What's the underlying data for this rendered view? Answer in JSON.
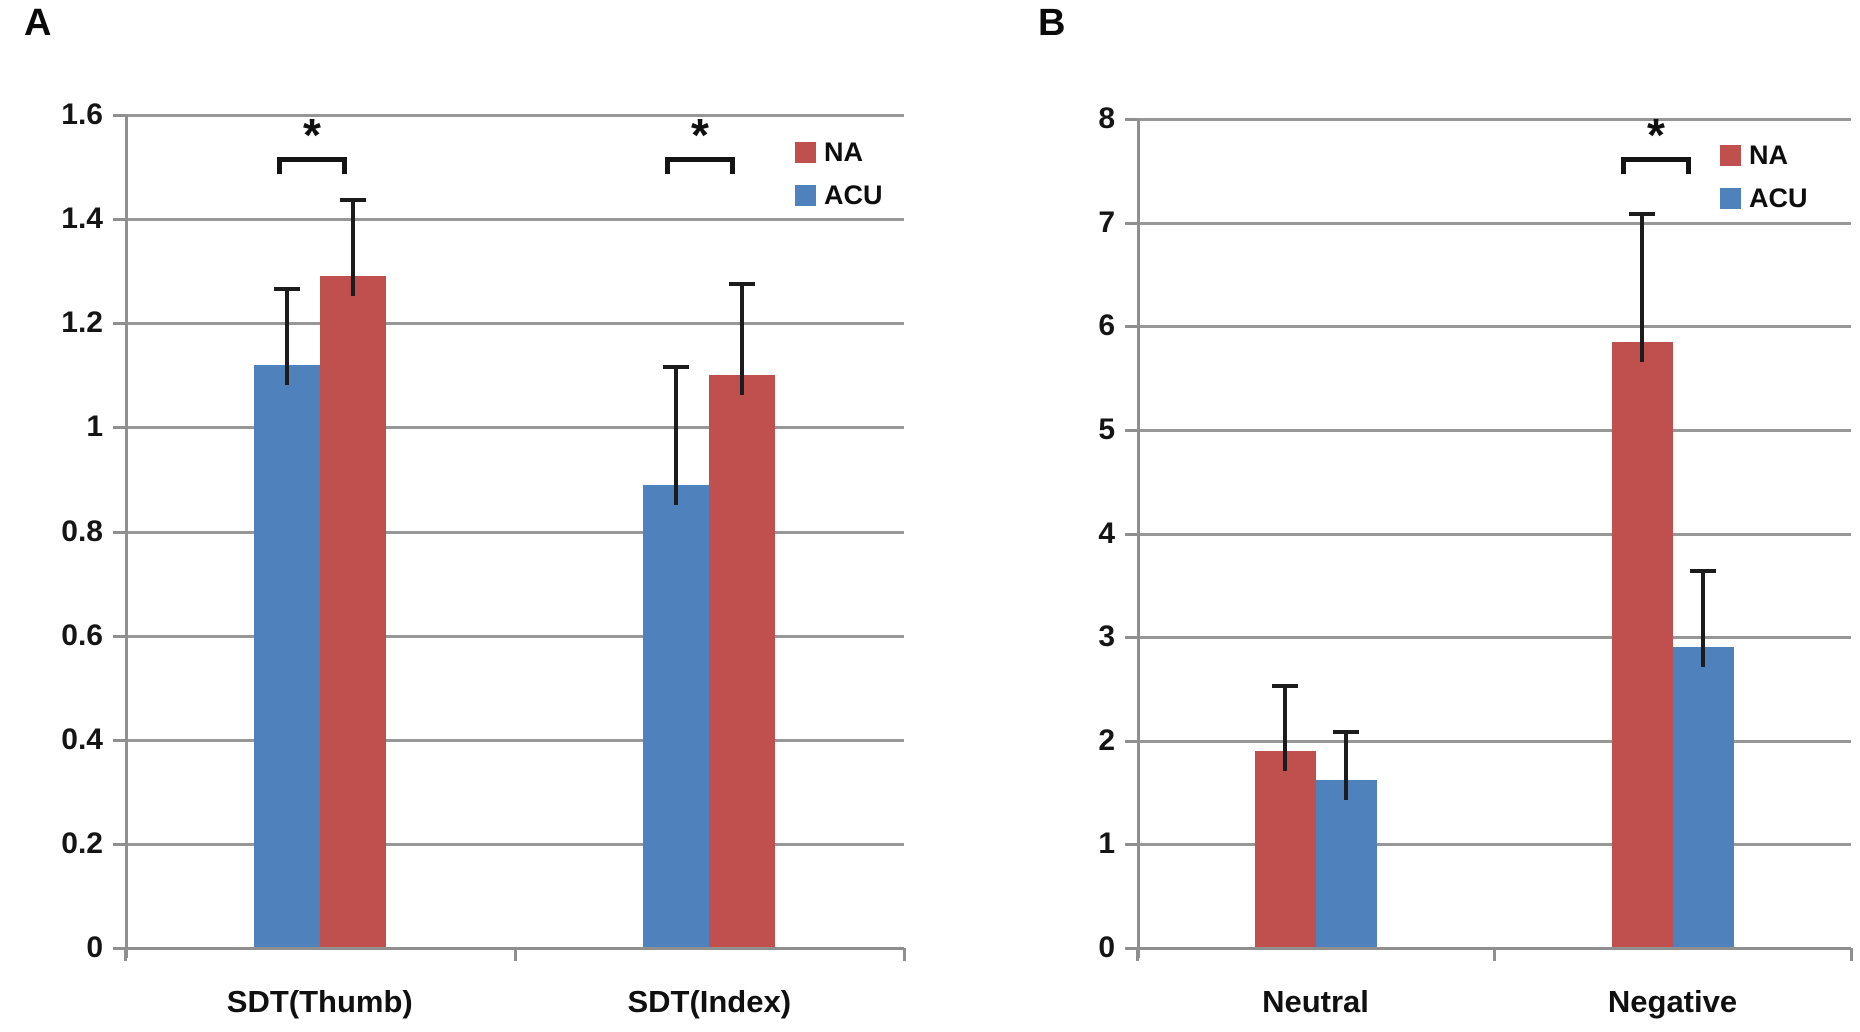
{
  "figure_title": "",
  "accent_colors": {
    "na_red": "#C0504D",
    "acu_blue": "#4F81BD"
  },
  "chart_data": [
    {
      "type": "bar",
      "panel": "A",
      "categories": [
        "SDT(Thumb)",
        "SDT(Index)"
      ],
      "series": [
        {
          "name": "ACU",
          "color": "#4F81BD",
          "values": [
            1.12,
            0.89
          ],
          "errors_plus": [
            0.15,
            0.23
          ]
        },
        {
          "name": "NA",
          "color": "#C0504D",
          "values": [
            1.29,
            1.1
          ],
          "errors_plus": [
            0.15,
            0.18
          ]
        }
      ],
      "legend": [
        {
          "label": "NA",
          "color": "#C0504D"
        },
        {
          "label": "ACU",
          "color": "#4F81BD"
        }
      ],
      "xlabel": "",
      "ylabel": "",
      "ylim": [
        0,
        1.6
      ],
      "yticks": [
        "0",
        "0.2",
        "0.4",
        "0.6",
        "0.8",
        "1",
        "1.2",
        "1.4",
        "1.6"
      ],
      "grid": true,
      "legend_position": "top-right-inside",
      "error_bars": "plus-direction-with-caps",
      "significance": [
        {
          "category": 0,
          "marker": "*"
        },
        {
          "category": 1,
          "marker": "*"
        }
      ]
    },
    {
      "type": "bar",
      "panel": "B",
      "categories": [
        "Neutral",
        "Negative"
      ],
      "series": [
        {
          "name": "NA",
          "color": "#C0504D",
          "values": [
            1.9,
            5.85
          ],
          "errors_plus": [
            0.65,
            1.25
          ]
        },
        {
          "name": "ACU",
          "color": "#4F81BD",
          "values": [
            1.62,
            2.9
          ],
          "errors_plus": [
            0.48,
            0.76
          ]
        }
      ],
      "legend": [
        {
          "label": "NA",
          "color": "#C0504D"
        },
        {
          "label": "ACU",
          "color": "#4F81BD"
        }
      ],
      "xlabel": "",
      "ylabel": "",
      "ylim": [
        0,
        8
      ],
      "yticks": [
        "0",
        "1",
        "2",
        "3",
        "4",
        "5",
        "6",
        "7",
        "8"
      ],
      "grid": true,
      "legend_position": "top-right-inside",
      "error_bars": "plus-direction-with-caps",
      "significance": [
        {
          "category": 1,
          "marker": "*"
        }
      ]
    }
  ]
}
